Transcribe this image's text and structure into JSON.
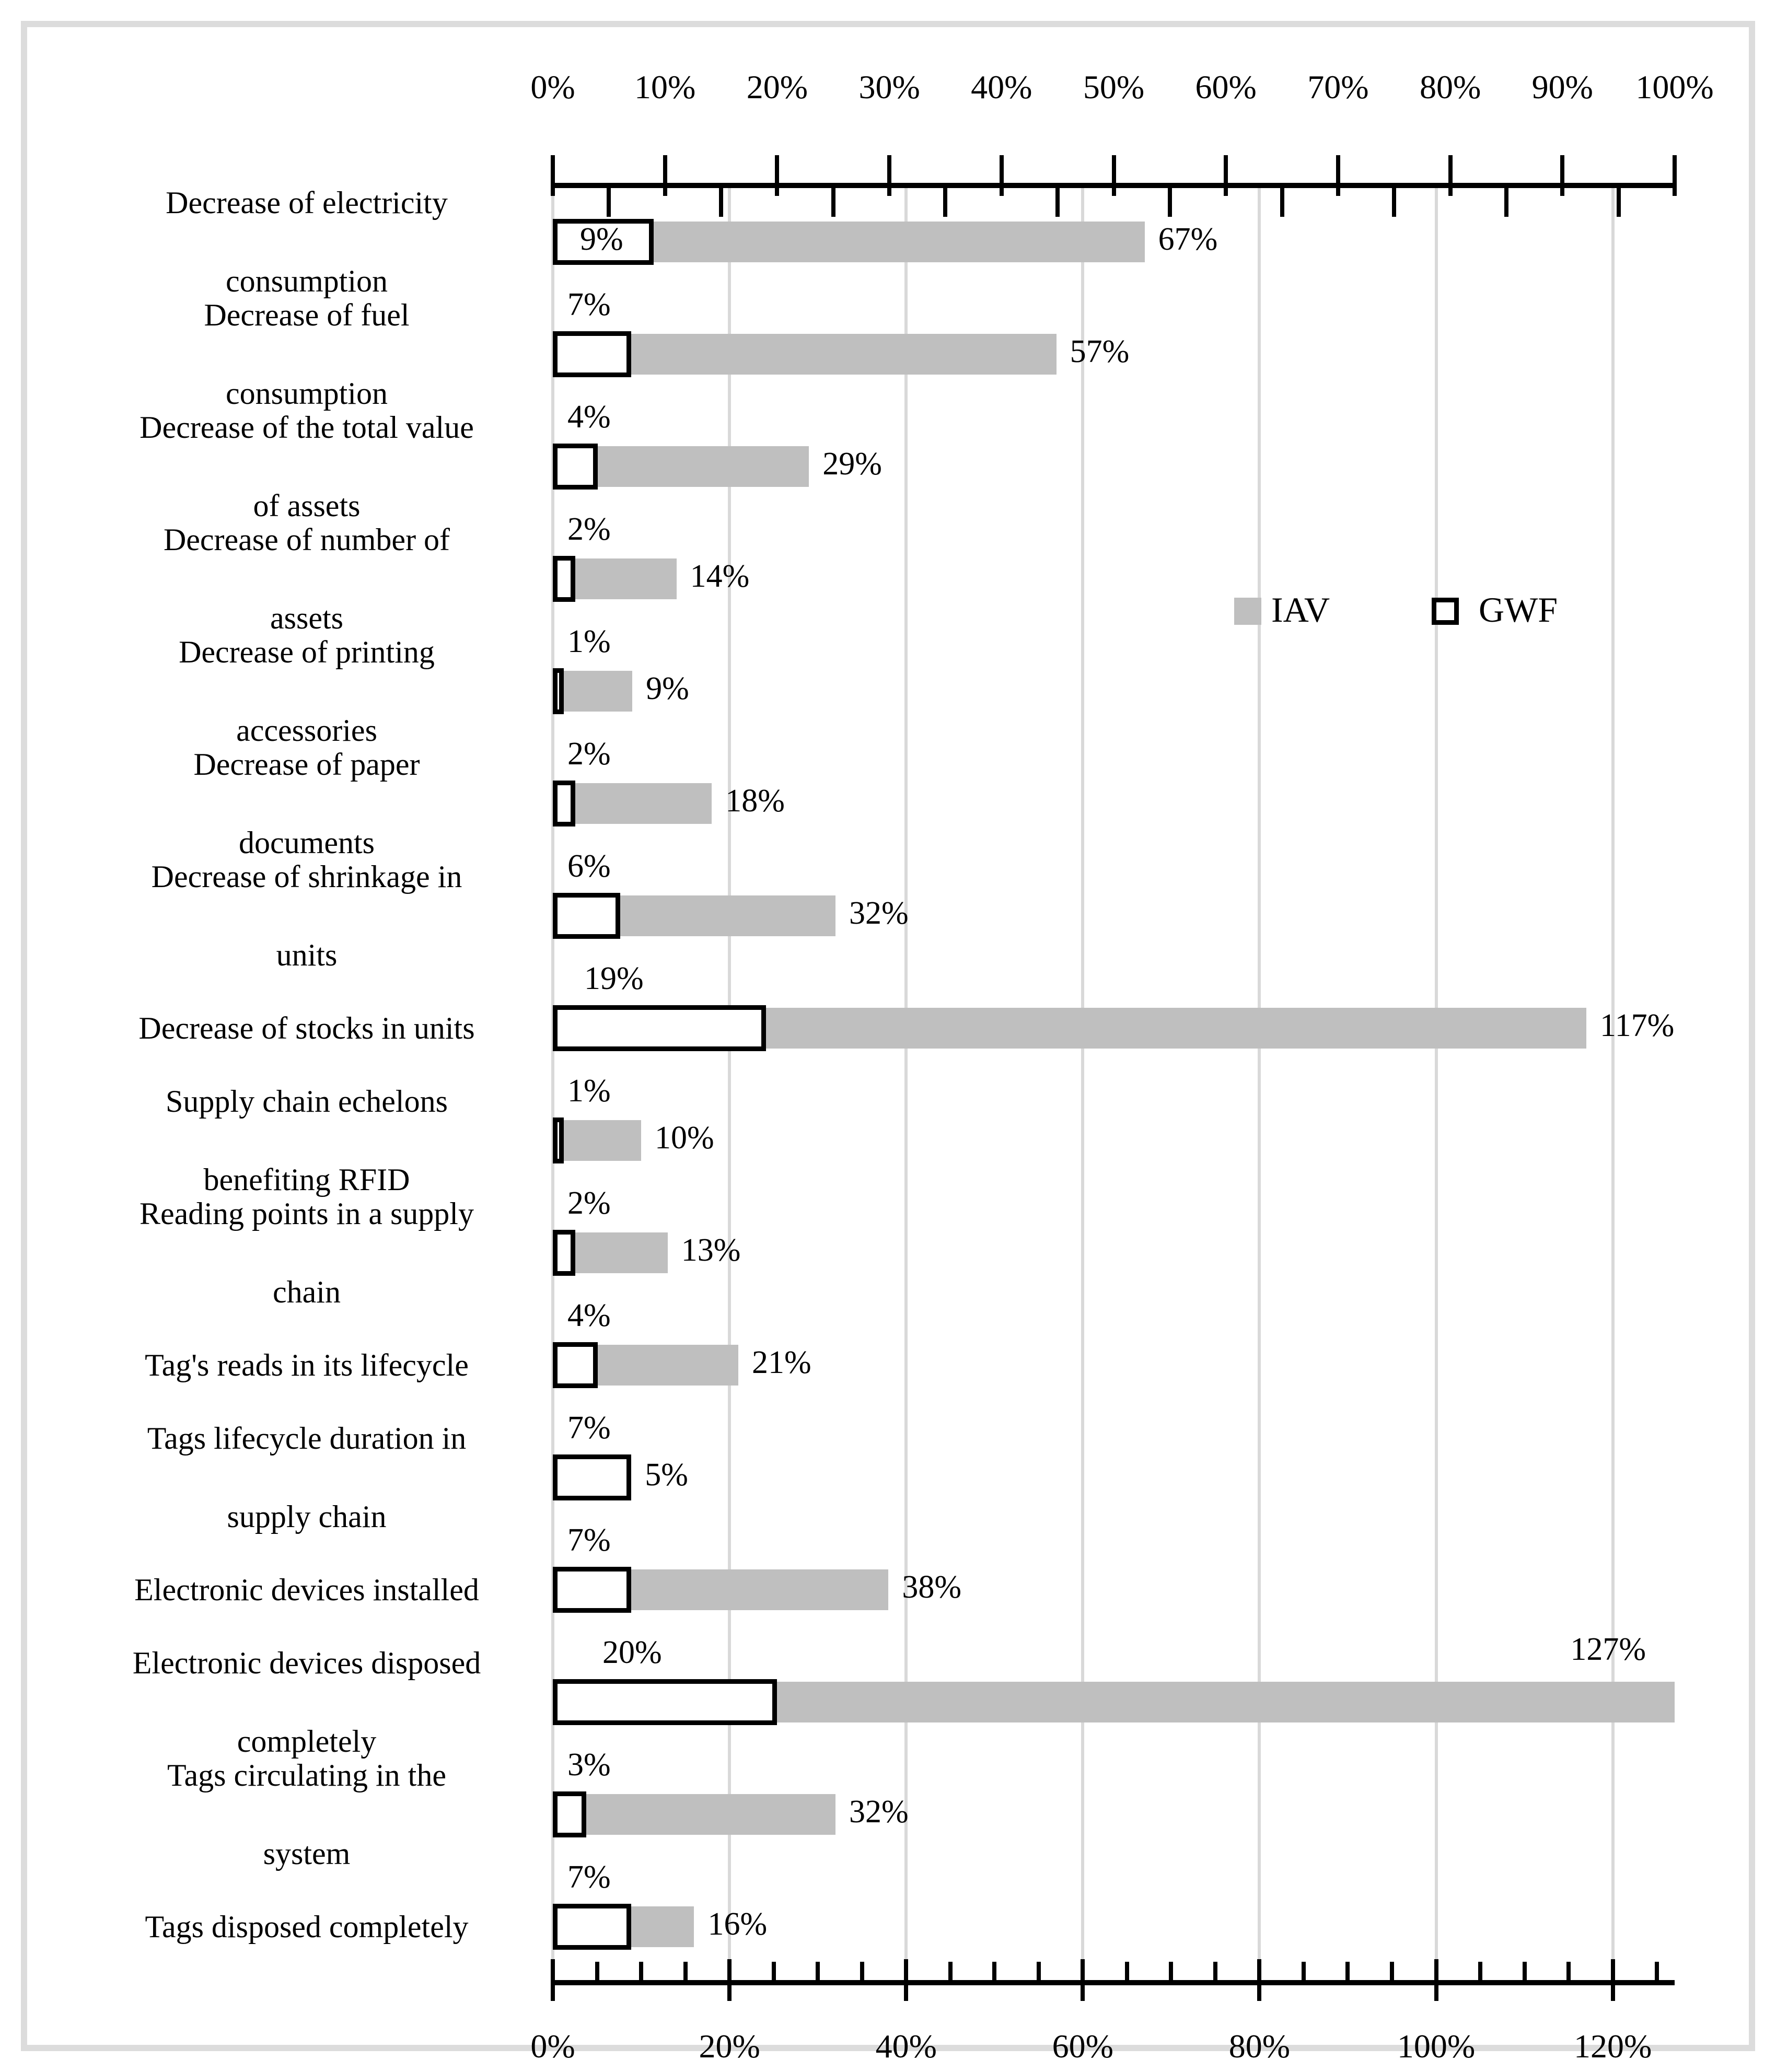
{
  "chart_data": {
    "type": "bar",
    "orientation": "horizontal",
    "categories": [
      "Decrease of electricity\nconsumption",
      "Decrease of fuel\nconsumption",
      "Decrease of the total value\nof assets",
      "Decrease of number of\nassets",
      "Decrease of printing\naccessories",
      "Decrease of paper\ndocuments",
      "Decrease of shrinkage in\nunits",
      "Decrease of stocks in units",
      "Supply chain echelons\nbenefiting RFID",
      "Reading points in a supply\nchain",
      "Tag's reads in its lifecycle",
      "Tags lifecycle duration in\nsupply chain",
      "Electronic devices installed",
      "Electronic devices disposed\ncompletely",
      "Tags circulating in the\nsystem",
      "Tags disposed completely"
    ],
    "series": [
      {
        "name": "IAV",
        "axis": "bottom",
        "color": "#bfbfbf",
        "values": [
          67,
          57,
          29,
          14,
          9,
          18,
          32,
          117,
          10,
          13,
          21,
          5,
          38,
          127,
          32,
          16
        ],
        "labels": [
          "67%",
          "57%",
          "29%",
          "14%",
          "9%",
          "18%",
          "32%",
          "117%",
          "10%",
          "13%",
          "21%",
          "5%",
          "38%",
          "127%",
          "32%",
          "16%"
        ]
      },
      {
        "name": "GWF",
        "axis": "top",
        "color": "#ffffff",
        "values": [
          9,
          7,
          4,
          2,
          1,
          2,
          6,
          19,
          1,
          2,
          4,
          7,
          7,
          20,
          3,
          7
        ],
        "labels": [
          "9%",
          "7%",
          "4%",
          "2%",
          "1%",
          "2%",
          "6%",
          "19%",
          "1%",
          "2%",
          "4%",
          "7%",
          "7%",
          "20%",
          "3%",
          "7%"
        ]
      }
    ],
    "label_placement": {
      "gwf": [
        "inside",
        "above",
        "above",
        "above",
        "above",
        "above",
        "above",
        "above",
        "above",
        "above",
        "above",
        "above",
        "above",
        "above",
        "above",
        "above"
      ],
      "gwf_dx": [
        52,
        28,
        28,
        28,
        28,
        28,
        28,
        60,
        28,
        28,
        28,
        28,
        28,
        95,
        28,
        28
      ],
      "iav": [
        "right",
        "right",
        "right",
        "right",
        "right",
        "right",
        "right",
        "right",
        "right",
        "right",
        "right",
        "right",
        "right",
        "above-end",
        "right",
        "right"
      ]
    },
    "axes": {
      "top": {
        "min": 0,
        "max": 100,
        "major": 10,
        "minor": 5,
        "tick_values": [
          0,
          10,
          20,
          30,
          40,
          50,
          60,
          70,
          80,
          90,
          100
        ],
        "tick_labels": [
          "0%",
          "10%",
          "20%",
          "30%",
          "40%",
          "50%",
          "60%",
          "70%",
          "80%",
          "90%",
          "100%"
        ]
      },
      "bottom": {
        "min": 0,
        "max": 127,
        "major": 20,
        "minor": 5,
        "tick_values": [
          0,
          20,
          40,
          60,
          80,
          100,
          120
        ],
        "tick_labels": [
          "0%",
          "20%",
          "40%",
          "60%",
          "80%",
          "100%",
          "120%"
        ]
      }
    },
    "gridlines_bottom_axis": [
      20,
      40,
      60,
      80,
      100,
      120
    ],
    "legend": {
      "items": [
        {
          "label": "IAV",
          "fill": "#bfbfbf",
          "border": "none"
        },
        {
          "label": "GWF",
          "fill": "#ffffff",
          "border": "#000000"
        }
      ]
    },
    "title": "",
    "xlabel": "",
    "ylabel": ""
  },
  "styles": {
    "bar_gray": "#bfbfbf",
    "gridline": "#d9d9d9",
    "axis": "#000000",
    "frame_border": "#dcdcdc",
    "text": "#000000",
    "background": "#ffffff"
  }
}
